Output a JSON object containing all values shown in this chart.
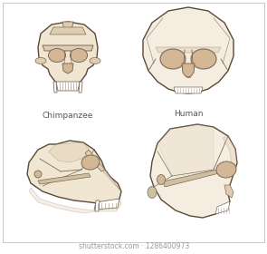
{
  "background_color": "#ffffff",
  "border_color": "#cccccc",
  "skull_fill": "#f0e6d2",
  "skull_fill_light": "#f5ede0",
  "skull_fill_dark": "#e0ccb0",
  "skull_shadow": "#cebfa0",
  "skull_outline": "#7a6a5a",
  "skull_outline_dark": "#5a4a3a",
  "eye_fill": "#d4b896",
  "teeth_fill": "#ffffff",
  "teeth_outline": "#b0a090",
  "label_color": "#555555",
  "label_chimp": "Chimpanzee",
  "label_human": "Human",
  "watermark": "shutterstock.com · 1286400973",
  "label_fontsize": 6.5,
  "watermark_fontsize": 5.5,
  "figsize": [
    2.95,
    2.8
  ],
  "dpi": 100
}
